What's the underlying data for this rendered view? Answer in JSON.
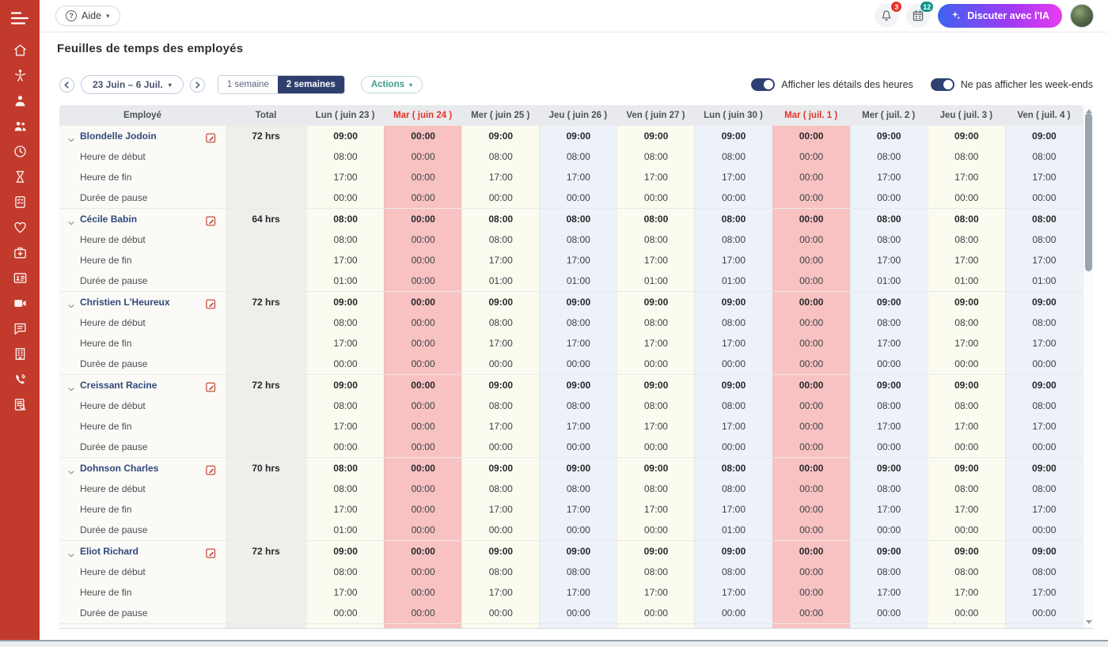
{
  "sidebar": {
    "icons": [
      "home",
      "child",
      "user",
      "users",
      "clock",
      "hourglass",
      "form",
      "heart",
      "medkit",
      "idcard",
      "video",
      "chat",
      "building",
      "phone",
      "report"
    ]
  },
  "topbar": {
    "help_label": "Aide",
    "notification_badge": "3",
    "tasks_badge": "12",
    "ai_button_label": "Discuter avec l'IA"
  },
  "page": {
    "title": "Feuilles de temps des employés"
  },
  "toolbar": {
    "date_range": "23 Juin – 6 Juil.",
    "week_options": [
      "1 semaine",
      "2 semaines"
    ],
    "active_week_option": "2 semaines",
    "actions_label": "Actions",
    "toggles": [
      {
        "label": "Afficher les détails des heures",
        "on": true
      },
      {
        "label": "Ne pas afficher les week-ends",
        "on": true
      }
    ]
  },
  "table": {
    "columns": [
      {
        "label": "Employé",
        "type": "emp"
      },
      {
        "label": "Total",
        "type": "total"
      },
      {
        "label": "Lun ( juin 23 )",
        "type": "cream",
        "highlight": false
      },
      {
        "label": "Mar ( juin 24 )",
        "type": "pink",
        "highlight": true
      },
      {
        "label": "Mer ( juin 25 )",
        "type": "cream",
        "highlight": false
      },
      {
        "label": "Jeu ( juin 26 )",
        "type": "lav",
        "highlight": false
      },
      {
        "label": "Ven ( juin 27 )",
        "type": "cream",
        "highlight": false
      },
      {
        "label": "Lun ( juin 30 )",
        "type": "lav",
        "highlight": false
      },
      {
        "label": "Mar ( juil. 1 )",
        "type": "pink",
        "highlight": true
      },
      {
        "label": "Mer ( juil. 2 )",
        "type": "lav",
        "highlight": false
      },
      {
        "label": "Jeu ( juil. 3 )",
        "type": "cream",
        "highlight": false
      },
      {
        "label": "Ven ( juil. 4 )",
        "type": "lav",
        "highlight": false
      }
    ],
    "row_labels": [
      "Heure de début",
      "Heure de fin",
      "Durée de pause"
    ],
    "employees": [
      {
        "name": "Blondelle Jodoin",
        "total": "72 hrs",
        "daily_totals": [
          "09:00",
          "00:00",
          "09:00",
          "09:00",
          "09:00",
          "09:00",
          "00:00",
          "09:00",
          "09:00",
          "09:00"
        ],
        "start": [
          "08:00",
          "00:00",
          "08:00",
          "08:00",
          "08:00",
          "08:00",
          "00:00",
          "08:00",
          "08:00",
          "08:00"
        ],
        "end": [
          "17:00",
          "00:00",
          "17:00",
          "17:00",
          "17:00",
          "17:00",
          "00:00",
          "17:00",
          "17:00",
          "17:00"
        ],
        "pause": [
          "00:00",
          "00:00",
          "00:00",
          "00:00",
          "00:00",
          "00:00",
          "00:00",
          "00:00",
          "00:00",
          "00:00"
        ]
      },
      {
        "name": "Cécile Babin",
        "total": "64 hrs",
        "daily_totals": [
          "08:00",
          "00:00",
          "08:00",
          "08:00",
          "08:00",
          "08:00",
          "00:00",
          "08:00",
          "08:00",
          "08:00"
        ],
        "start": [
          "08:00",
          "00:00",
          "08:00",
          "08:00",
          "08:00",
          "08:00",
          "00:00",
          "08:00",
          "08:00",
          "08:00"
        ],
        "end": [
          "17:00",
          "00:00",
          "17:00",
          "17:00",
          "17:00",
          "17:00",
          "00:00",
          "17:00",
          "17:00",
          "17:00"
        ],
        "pause": [
          "01:00",
          "00:00",
          "01:00",
          "01:00",
          "01:00",
          "01:00",
          "00:00",
          "01:00",
          "01:00",
          "01:00"
        ]
      },
      {
        "name": "Christien L'Heureux",
        "total": "72 hrs",
        "daily_totals": [
          "09:00",
          "00:00",
          "09:00",
          "09:00",
          "09:00",
          "09:00",
          "00:00",
          "09:00",
          "09:00",
          "09:00"
        ],
        "start": [
          "08:00",
          "00:00",
          "08:00",
          "08:00",
          "08:00",
          "08:00",
          "00:00",
          "08:00",
          "08:00",
          "08:00"
        ],
        "end": [
          "17:00",
          "00:00",
          "17:00",
          "17:00",
          "17:00",
          "17:00",
          "00:00",
          "17:00",
          "17:00",
          "17:00"
        ],
        "pause": [
          "00:00",
          "00:00",
          "00:00",
          "00:00",
          "00:00",
          "00:00",
          "00:00",
          "00:00",
          "00:00",
          "00:00"
        ]
      },
      {
        "name": "Creissant Racine",
        "total": "72 hrs",
        "daily_totals": [
          "09:00",
          "00:00",
          "09:00",
          "09:00",
          "09:00",
          "09:00",
          "00:00",
          "09:00",
          "09:00",
          "09:00"
        ],
        "start": [
          "08:00",
          "00:00",
          "08:00",
          "08:00",
          "08:00",
          "08:00",
          "00:00",
          "08:00",
          "08:00",
          "08:00"
        ],
        "end": [
          "17:00",
          "00:00",
          "17:00",
          "17:00",
          "17:00",
          "17:00",
          "00:00",
          "17:00",
          "17:00",
          "17:00"
        ],
        "pause": [
          "00:00",
          "00:00",
          "00:00",
          "00:00",
          "00:00",
          "00:00",
          "00:00",
          "00:00",
          "00:00",
          "00:00"
        ]
      },
      {
        "name": "Dohnson Charles",
        "total": "70 hrs",
        "daily_totals": [
          "08:00",
          "00:00",
          "09:00",
          "09:00",
          "09:00",
          "08:00",
          "00:00",
          "09:00",
          "09:00",
          "09:00"
        ],
        "start": [
          "08:00",
          "00:00",
          "08:00",
          "08:00",
          "08:00",
          "08:00",
          "00:00",
          "08:00",
          "08:00",
          "08:00"
        ],
        "end": [
          "17:00",
          "00:00",
          "17:00",
          "17:00",
          "17:00",
          "17:00",
          "00:00",
          "17:00",
          "17:00",
          "17:00"
        ],
        "pause": [
          "01:00",
          "00:00",
          "00:00",
          "00:00",
          "00:00",
          "01:00",
          "00:00",
          "00:00",
          "00:00",
          "00:00"
        ]
      },
      {
        "name": "Eliot Richard",
        "total": "72 hrs",
        "daily_totals": [
          "09:00",
          "00:00",
          "09:00",
          "09:00",
          "09:00",
          "09:00",
          "00:00",
          "09:00",
          "09:00",
          "09:00"
        ],
        "start": [
          "08:00",
          "00:00",
          "08:00",
          "08:00",
          "08:00",
          "08:00",
          "00:00",
          "08:00",
          "08:00",
          "08:00"
        ],
        "end": [
          "17:00",
          "00:00",
          "17:00",
          "17:00",
          "17:00",
          "17:00",
          "00:00",
          "17:00",
          "17:00",
          "17:00"
        ],
        "pause": [
          "00:00",
          "00:00",
          "00:00",
          "00:00",
          "00:00",
          "00:00",
          "00:00",
          "00:00",
          "00:00",
          "00:00"
        ]
      }
    ],
    "partial_next_block": true
  },
  "colors": {
    "sidebar": "#c23a2b",
    "accent_navy": "#2e3f6e",
    "holiday_pink": "#f8c2c2",
    "day_cream": "#fbfbef",
    "day_lavender": "#edf1f8",
    "badge_red": "#e5332a",
    "badge_teal": "#0d9488"
  }
}
